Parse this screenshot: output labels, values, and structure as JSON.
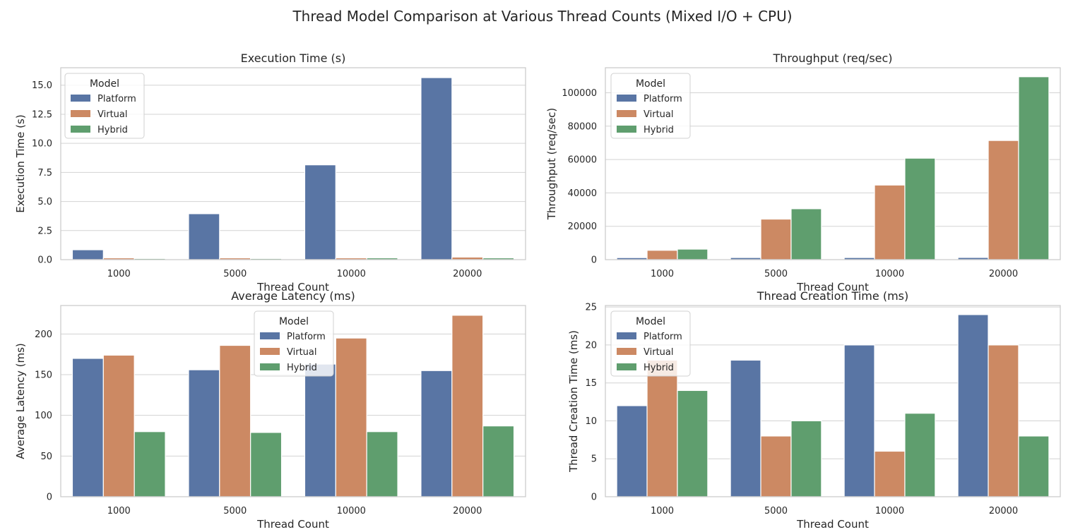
{
  "figure": {
    "title": "Thread Model Comparison at Various Thread Counts (Mixed I/O + CPU)"
  },
  "colors": {
    "Platform": "#5975a4",
    "Virtual": "#cc8963",
    "Hybrid": "#5f9e6e"
  },
  "chart_data": [
    {
      "type": "bar",
      "title": "Execution Time (s)",
      "xlabel": "Thread Count",
      "ylabel": "Execution Time (s)",
      "categories": [
        "1000",
        "5000",
        "10000",
        "20000"
      ],
      "ylim": [
        0,
        16.5
      ],
      "yticks": [
        0,
        2.5,
        5,
        7.5,
        10,
        12.5,
        15
      ],
      "ytick_labels": [
        "0.0",
        "2.5",
        "5.0",
        "7.5",
        "10.0",
        "12.5",
        "15.0"
      ],
      "grid": true,
      "legend": {
        "title": "Model",
        "position": "top-left"
      },
      "series": [
        {
          "name": "Platform",
          "values": [
            0.85,
            3.95,
            8.15,
            15.65
          ]
        },
        {
          "name": "Virtual",
          "values": [
            0.15,
            0.15,
            0.15,
            0.22
          ]
        },
        {
          "name": "Hybrid",
          "values": [
            0.1,
            0.1,
            0.15,
            0.15
          ]
        }
      ]
    },
    {
      "type": "bar",
      "title": "Throughput (req/sec)",
      "xlabel": "Thread Count",
      "ylabel": "Throughput (req/sec)",
      "categories": [
        "1000",
        "5000",
        "10000",
        "20000"
      ],
      "ylim": [
        0,
        115000
      ],
      "yticks": [
        0,
        20000,
        40000,
        60000,
        80000,
        100000
      ],
      "ytick_labels": [
        "0",
        "20000",
        "40000",
        "60000",
        "80000",
        "100000"
      ],
      "grid": true,
      "legend": {
        "title": "Model",
        "position": "top-left"
      },
      "series": [
        {
          "name": "Platform",
          "values": [
            1200,
            1250,
            1250,
            1300
          ]
        },
        {
          "name": "Virtual",
          "values": [
            5600,
            24300,
            44700,
            71400
          ]
        },
        {
          "name": "Hybrid",
          "values": [
            6300,
            30500,
            60800,
            109600
          ]
        }
      ]
    },
    {
      "type": "bar",
      "title": "Average Latency (ms)",
      "xlabel": "Thread Count",
      "ylabel": "Average Latency (ms)",
      "categories": [
        "1000",
        "5000",
        "10000",
        "20000"
      ],
      "ylim": [
        0,
        235
      ],
      "yticks": [
        0,
        50,
        100,
        150,
        200
      ],
      "ytick_labels": [
        "0",
        "50",
        "100",
        "150",
        "200"
      ],
      "grid": true,
      "legend": {
        "title": "Model",
        "position": "top-center"
      },
      "series": [
        {
          "name": "Platform",
          "values": [
            170,
            156,
            163,
            155
          ]
        },
        {
          "name": "Virtual",
          "values": [
            174,
            186,
            195,
            223
          ]
        },
        {
          "name": "Hybrid",
          "values": [
            80,
            79,
            80,
            87
          ]
        }
      ]
    },
    {
      "type": "bar",
      "title": "Thread Creation Time (ms)",
      "xlabel": "Thread Count",
      "ylabel": "Thread Creation Time (ms)",
      "categories": [
        "1000",
        "5000",
        "10000",
        "20000"
      ],
      "ylim": [
        0,
        25.2
      ],
      "yticks": [
        0,
        5,
        10,
        15,
        20,
        25
      ],
      "ytick_labels": [
        "0",
        "5",
        "10",
        "15",
        "20",
        "25"
      ],
      "grid": true,
      "legend": {
        "title": "Model",
        "position": "top-left"
      },
      "series": [
        {
          "name": "Platform",
          "values": [
            12,
            18,
            20,
            24
          ]
        },
        {
          "name": "Virtual",
          "values": [
            18,
            8,
            6,
            20
          ]
        },
        {
          "name": "Hybrid",
          "values": [
            14,
            10,
            11,
            8
          ]
        }
      ]
    }
  ]
}
